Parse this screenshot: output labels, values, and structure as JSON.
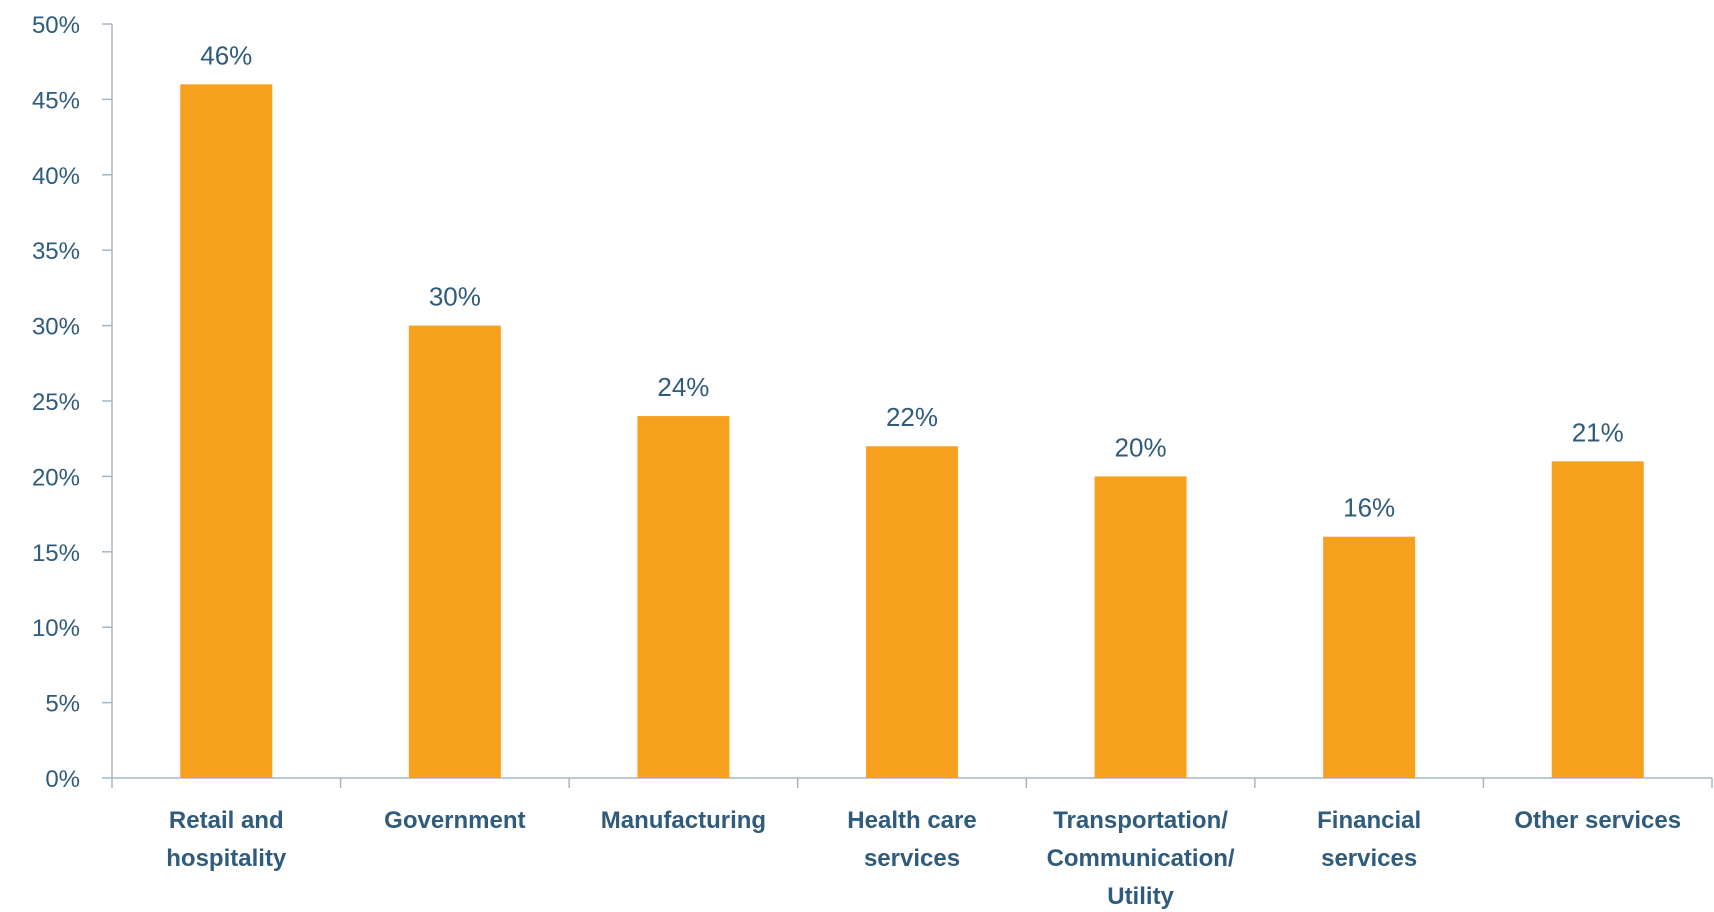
{
  "chart_data": {
    "type": "bar",
    "categories": [
      [
        "Retail and",
        "hospitality"
      ],
      [
        "Government"
      ],
      [
        "Manufacturing"
      ],
      [
        "Health care",
        "services"
      ],
      [
        "Transportation/",
        "Communication/",
        "Utility"
      ],
      [
        "Financial",
        "services"
      ],
      [
        "Other services"
      ]
    ],
    "values": [
      46,
      30,
      24,
      22,
      20,
      16,
      21
    ],
    "data_labels": [
      "46%",
      "30%",
      "24%",
      "22%",
      "20%",
      "16%",
      "21%"
    ],
    "y_ticks": [
      0,
      5,
      10,
      15,
      20,
      25,
      30,
      35,
      40,
      45,
      50
    ],
    "y_tick_labels": [
      "0%",
      "5%",
      "10%",
      "15%",
      "20%",
      "25%",
      "30%",
      "35%",
      "40%",
      "45%",
      "50%"
    ],
    "ylim": [
      0,
      50
    ],
    "grid": false,
    "legend": "none",
    "bar_color": "#f5a11d",
    "text_color": "#2f5b7c",
    "axis_color": "#a6b6c4"
  }
}
